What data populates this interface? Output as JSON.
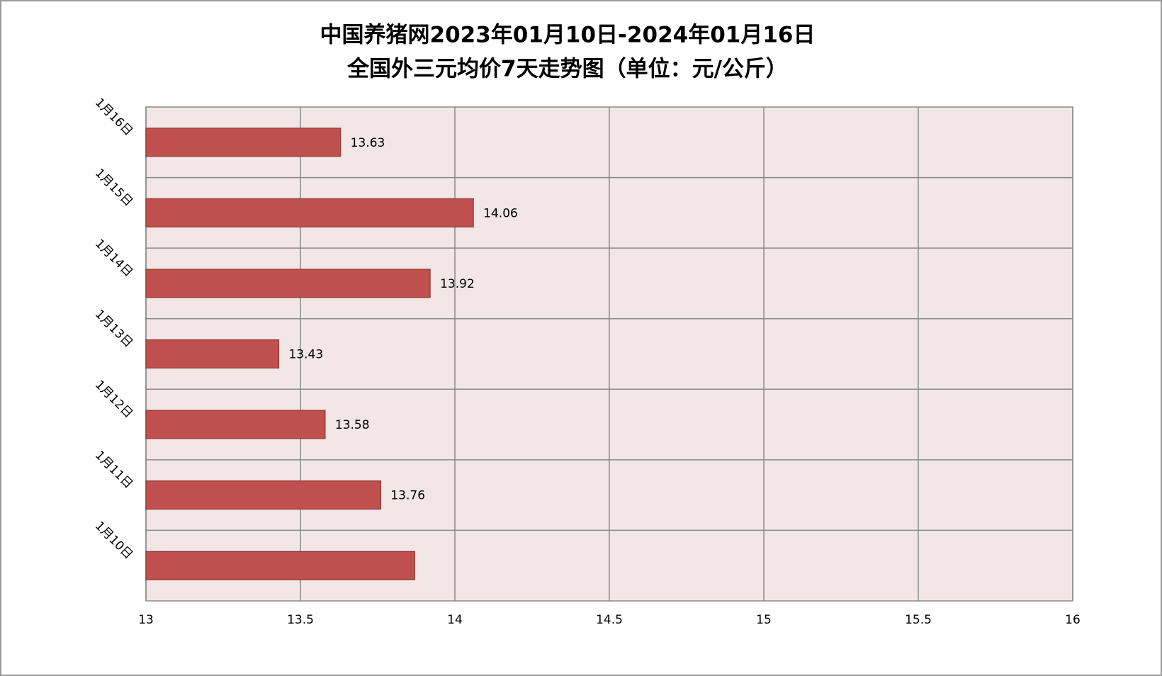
{
  "chart_data": {
    "type": "barh",
    "title": "中国养猪网2023年01月10日-2024年01月16日",
    "subtitle": "全国外三元均价7天走势图（单位：元/公斤）",
    "categories": [
      "1月16日",
      "1月15日",
      "1月14日",
      "1月13日",
      "1月12日",
      "1月11日",
      "1月10日"
    ],
    "values": [
      13.63,
      14.06,
      13.92,
      13.43,
      13.58,
      13.76,
      13.87
    ],
    "value_labels": [
      "13.63",
      "14.06",
      "13.92",
      "13.43",
      "13.58",
      "13.76",
      null
    ],
    "color": "#c0504d",
    "xlim": [
      13,
      16
    ],
    "xticks": [
      13,
      13.5,
      14,
      14.5,
      15,
      15.5,
      16
    ],
    "grid": true
  }
}
